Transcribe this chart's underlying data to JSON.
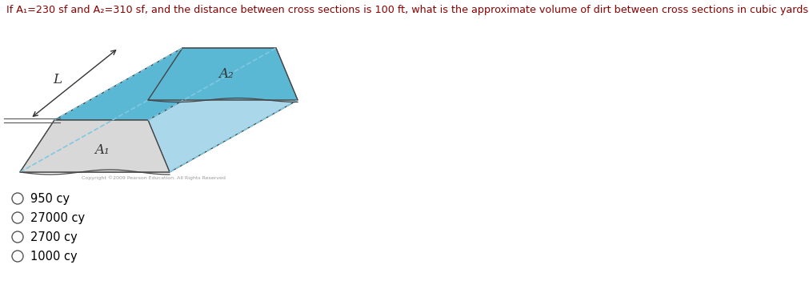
{
  "title": "If A₁=230 sf and A₂=310 sf, and the distance between cross sections is 100 ft, what is the approximate volume of dirt between cross sections in cubic yards?",
  "title_color": "#8B0000",
  "options": [
    "950 cy",
    "27000 cy",
    "2700 cy",
    "1000 cy"
  ],
  "option_color": "#000000",
  "background_color": "#ffffff",
  "fig_width": 10.11,
  "fig_height": 3.76,
  "A1_label": "A₁",
  "A2_label": "A₂",
  "L_label": "L",
  "color_blue_dark": "#5bb8d4",
  "color_blue_light": "#aad8ea",
  "color_gray": "#d8d8d8",
  "color_edge": "#444444",
  "color_dashed": "#7ec8e3",
  "copyright_text": "Copyright ©2009 Pearson Education. All Rights Reserved"
}
